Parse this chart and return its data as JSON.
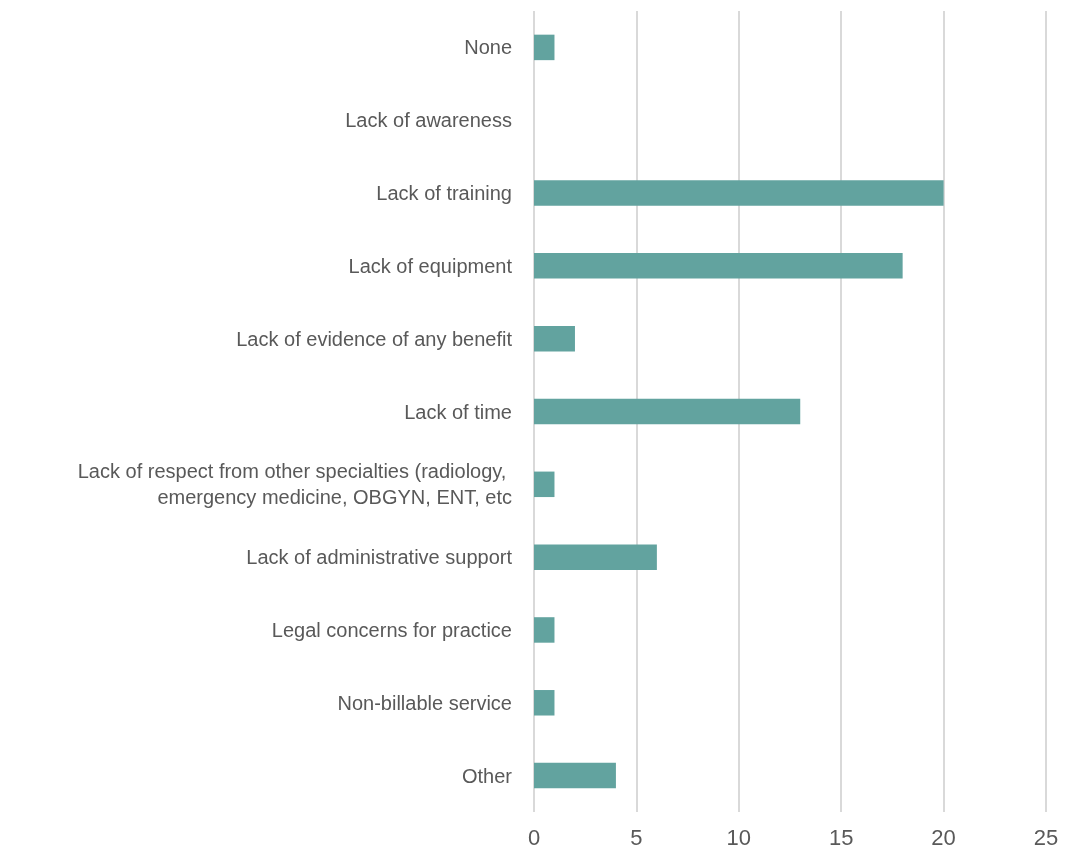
{
  "chart_data": {
    "type": "bar",
    "orientation": "horizontal",
    "categories": [
      "None",
      "Lack of awareness",
      "Lack of training",
      "Lack of equipment",
      "Lack of evidence of any benefit",
      "Lack of time",
      "Lack of respect from other specialties (radiology, emergency medicine, OBGYN, ENT, etc",
      "Lack of administrative support",
      "Legal concerns for practice",
      "Non-billable service",
      "Other"
    ],
    "values": [
      1,
      0,
      20,
      18,
      2,
      13,
      1,
      6,
      1,
      1,
      4
    ],
    "color": "#62a39f",
    "xlim": [
      0,
      25
    ],
    "xticks": [
      0,
      5,
      10,
      15,
      20,
      25
    ],
    "grid": "x"
  }
}
